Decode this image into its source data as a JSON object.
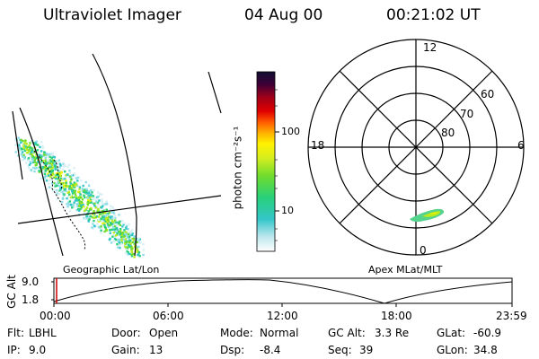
{
  "header": {
    "title": "Ultraviolet Imager",
    "date": "04 Aug 00",
    "time": "00:21:02 UT"
  },
  "colorbar": {
    "label": "photon cm⁻²s⁻¹",
    "ticks": [
      "100",
      "10"
    ]
  },
  "polar": {
    "mlt_labels": [
      "12",
      "18",
      "6",
      "0"
    ],
    "lat_labels": [
      "60",
      "70",
      "80"
    ]
  },
  "panel_labels": {
    "left": "Geographic Lat/Lon",
    "right": "Apex MLat/MLT"
  },
  "timeline": {
    "axis_label": "GC Alt",
    "y_ticks": [
      "9.0",
      "1.8"
    ],
    "x_ticks": [
      "00:00",
      "06:00",
      "12:00",
      "18:00",
      "23:59"
    ]
  },
  "status": {
    "row1": [
      {
        "key": "Flt:",
        "value": "LBHL"
      },
      {
        "key": "Door:",
        "value": "Open"
      },
      {
        "key": "Mode:",
        "value": "Normal"
      },
      {
        "key": "GC Alt:",
        "value": "3.3 Re"
      },
      {
        "key": "GLat:",
        "value": "-60.9"
      }
    ],
    "row2": [
      {
        "key": "IP:",
        "value": "9.0"
      },
      {
        "key": "Gain:",
        "value": "13"
      },
      {
        "key": "Dsp:",
        "value": "-8.4"
      },
      {
        "key": "Seq:",
        "value": "39"
      },
      {
        "key": "GLon:",
        "value": "34.8"
      }
    ]
  }
}
